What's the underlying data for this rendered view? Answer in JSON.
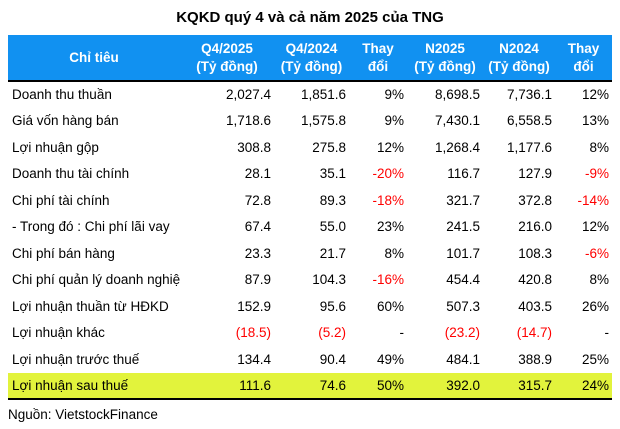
{
  "title": "KQKD quý 4 và cả năm 2025 của TNG",
  "source_note": "Nguồn: VietstockFinance",
  "colors": {
    "header_bg": "#1191f1",
    "header_text": "#ffffff",
    "highlight_row_bg": "#e2f33c",
    "negative_value": "#ff0000",
    "body_text": "#000000"
  },
  "chart_data": {
    "type": "table",
    "title": "KQKD quý 4 và cả năm 2025 của TNG",
    "unit_note": "Tỷ đồng",
    "columns": [
      {
        "label": "Chỉ tiêu",
        "sub": ""
      },
      {
        "label": "Q4/2025",
        "sub": "(Tỷ đồng)"
      },
      {
        "label": "Q4/2024",
        "sub": "(Tỷ đồng)"
      },
      {
        "label": "Thay",
        "sub": "đổi"
      },
      {
        "label": "N2025",
        "sub": "(Tỷ đồng)"
      },
      {
        "label": "N2024",
        "sub": "(Tỷ đồng)"
      },
      {
        "label": "Thay",
        "sub": "đổi"
      }
    ],
    "rows": [
      {
        "label": "Doanh thu thuần",
        "values": [
          "2,027.4",
          "1,851.6",
          "9%",
          "8,698.5",
          "7,736.1",
          "12%"
        ],
        "highlight": false
      },
      {
        "label": "Giá vốn hàng bán",
        "values": [
          "1,718.6",
          "1,575.8",
          "9%",
          "7,430.1",
          "6,558.5",
          "13%"
        ],
        "highlight": false
      },
      {
        "label": "Lợi nhuận gộp",
        "values": [
          "308.8",
          "275.8",
          "12%",
          "1,268.4",
          "1,177.6",
          "8%"
        ],
        "highlight": false
      },
      {
        "label": "Doanh thu tài chính",
        "values": [
          "28.1",
          "35.1",
          "-20%",
          "116.7",
          "127.9",
          "-9%"
        ],
        "highlight": false
      },
      {
        "label": "Chi phí tài chính",
        "values": [
          "72.8",
          "89.3",
          "-18%",
          "321.7",
          "372.8",
          "-14%"
        ],
        "highlight": false
      },
      {
        "label": "- Trong đó : Chi phí lãi vay",
        "values": [
          "67.4",
          "55.0",
          "23%",
          "241.5",
          "216.0",
          "12%"
        ],
        "highlight": false
      },
      {
        "label": "Chi phí bán hàng",
        "values": [
          "23.3",
          "21.7",
          "8%",
          "101.7",
          "108.3",
          "-6%"
        ],
        "highlight": false
      },
      {
        "label": "Chi phí quản lý doanh nghiệp",
        "values": [
          "87.9",
          "104.3",
          "-16%",
          "454.4",
          "420.8",
          "8%"
        ],
        "highlight": false
      },
      {
        "label": "Lợi nhuận thuần từ HĐKD",
        "values": [
          "152.9",
          "95.6",
          "60%",
          "507.3",
          "403.5",
          "26%"
        ],
        "highlight": false
      },
      {
        "label": "Lợi nhuận khác",
        "values": [
          "(18.5)",
          "(5.2)",
          "-",
          "(23.2)",
          "(14.7)",
          "-"
        ],
        "highlight": false
      },
      {
        "label": "Lợi nhuận trước thuế",
        "values": [
          "134.4",
          "90.4",
          "49%",
          "484.1",
          "388.9",
          "25%"
        ],
        "highlight": false
      },
      {
        "label": "Lợi nhuận sau thuế",
        "values": [
          "111.6",
          "74.6",
          "50%",
          "392.0",
          "315.7",
          "24%"
        ],
        "highlight": true
      }
    ]
  }
}
